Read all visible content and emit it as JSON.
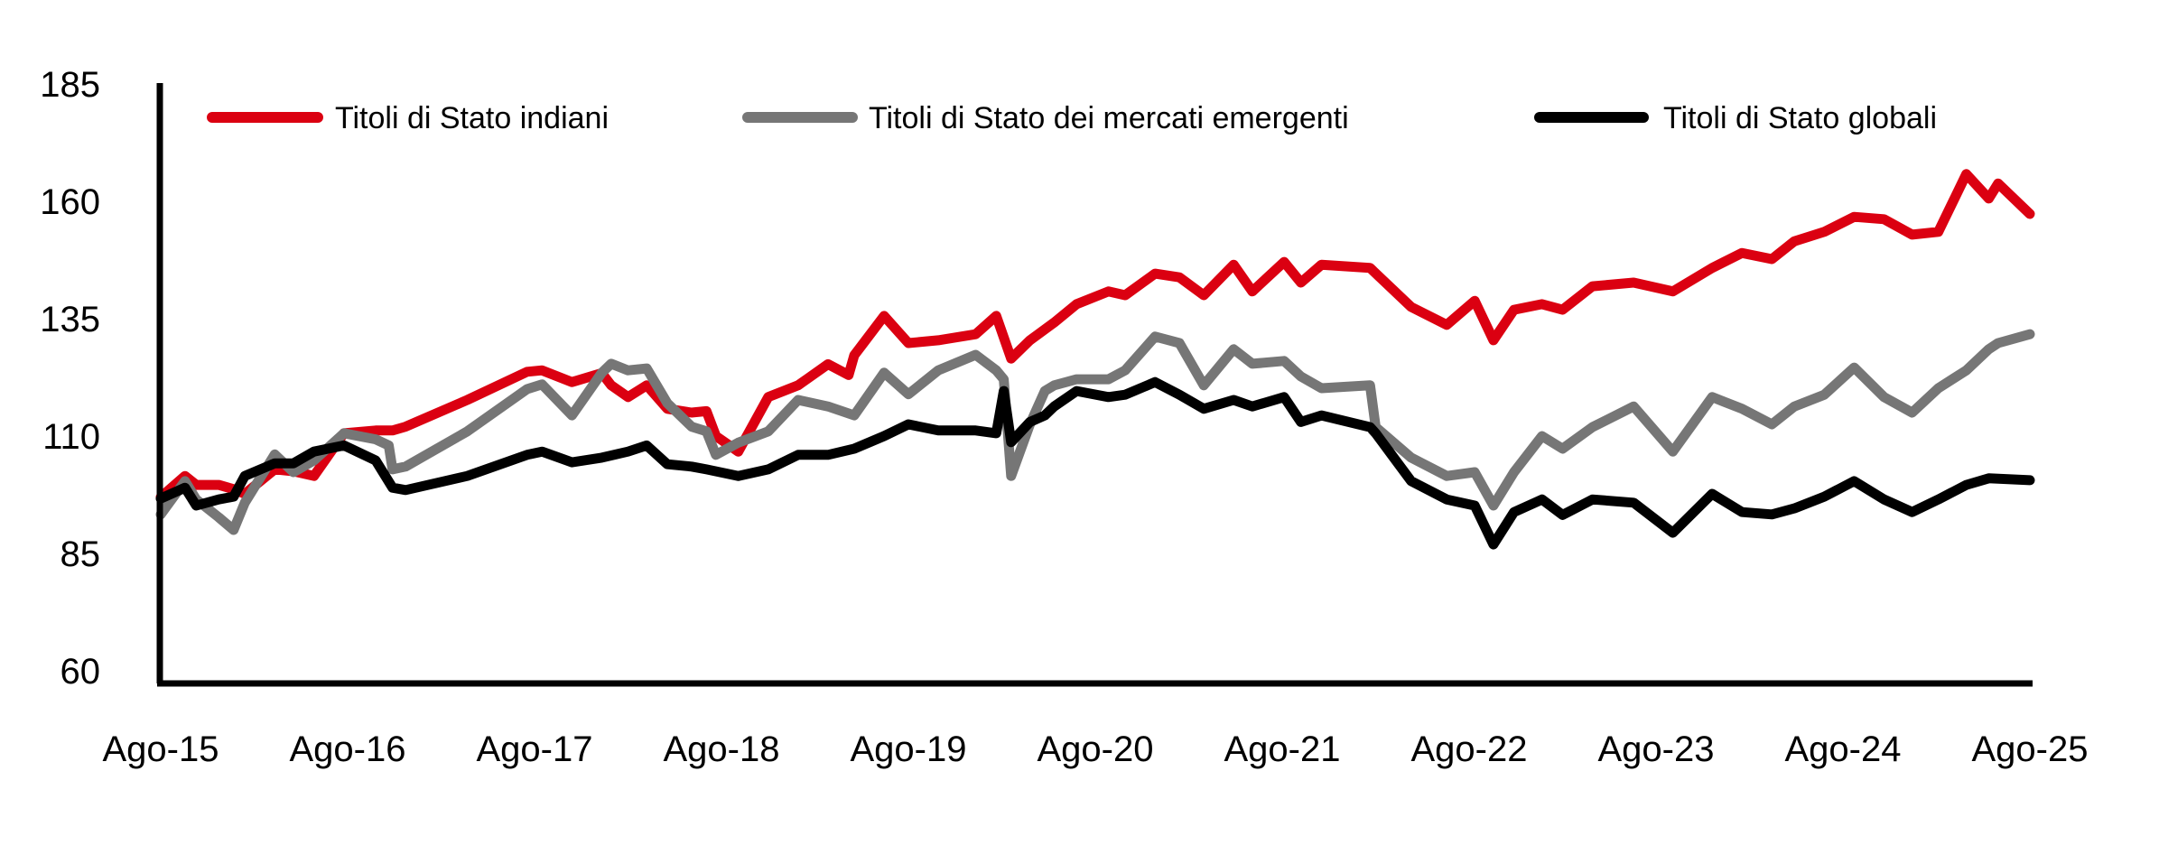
{
  "chart_data": {
    "type": "line",
    "title": "",
    "xlabel": "",
    "ylabel": "",
    "ylim": [
      60,
      185
    ],
    "yticks": [
      60,
      85,
      110,
      135,
      160,
      185
    ],
    "ytick_labels": [
      "60",
      "85",
      "110",
      "135",
      "160",
      "185"
    ],
    "xlim_years_from_start": [
      0,
      10
    ],
    "xtick_labels": [
      "Ago-15",
      "Ago-16",
      "Ago-17",
      "Ago-18",
      "Ago-19",
      "Ago-20",
      "Ago-21",
      "Ago-22",
      "Ago-23",
      "Ago-24",
      "Ago-25"
    ],
    "x_unit": "years since Aug-2015",
    "grid": false,
    "legend_position": "top",
    "series": [
      {
        "name": "Titoli di Stato indiani",
        "color": "#DB0011",
        "points": [
          [
            0,
            97
          ],
          [
            0.13,
            101.5
          ],
          [
            0.19,
            99.6
          ],
          [
            0.31,
            99.6
          ],
          [
            0.39,
            98.7
          ],
          [
            0.45,
            97.7
          ],
          [
            0.61,
            102.9
          ],
          [
            0.71,
            102.5
          ],
          [
            0.82,
            101.5
          ],
          [
            0.98,
            110.6
          ],
          [
            1.15,
            111.2
          ],
          [
            1.24,
            111.2
          ],
          [
            1.31,
            112
          ],
          [
            1.64,
            117.7
          ],
          [
            1.96,
            123.7
          ],
          [
            2.04,
            124
          ],
          [
            2.2,
            121.5
          ],
          [
            2.36,
            123.4
          ],
          [
            2.41,
            120.8
          ],
          [
            2.5,
            118.3
          ],
          [
            2.6,
            120.8
          ],
          [
            2.71,
            115.8
          ],
          [
            2.84,
            115
          ],
          [
            2.92,
            115.3
          ],
          [
            2.97,
            110
          ],
          [
            3.09,
            106.7
          ],
          [
            3.25,
            118.3
          ],
          [
            3.41,
            120.8
          ],
          [
            3.57,
            125.3
          ],
          [
            3.68,
            123
          ],
          [
            3.71,
            127.2
          ],
          [
            3.87,
            135.6
          ],
          [
            4.0,
            129.8
          ],
          [
            4.16,
            130.4
          ],
          [
            4.36,
            131.7
          ],
          [
            4.47,
            135.6
          ],
          [
            4.55,
            126.5
          ],
          [
            4.65,
            130.4
          ],
          [
            4.78,
            134.2
          ],
          [
            4.9,
            138.1
          ],
          [
            5.07,
            140.8
          ],
          [
            5.16,
            140
          ],
          [
            5.32,
            144.6
          ],
          [
            5.45,
            143.8
          ],
          [
            5.58,
            140
          ],
          [
            5.74,
            146.5
          ],
          [
            5.84,
            140.8
          ],
          [
            6.01,
            147.1
          ],
          [
            6.1,
            142.7
          ],
          [
            6.21,
            146.5
          ],
          [
            6.47,
            145.8
          ],
          [
            6.69,
            137.5
          ],
          [
            6.88,
            133.7
          ],
          [
            7.03,
            138.8
          ],
          [
            7.13,
            130.4
          ],
          [
            7.24,
            136.9
          ],
          [
            7.39,
            138.1
          ],
          [
            7.5,
            136.9
          ],
          [
            7.66,
            141.9
          ],
          [
            7.88,
            142.7
          ],
          [
            8.09,
            140.8
          ],
          [
            8.3,
            145.8
          ],
          [
            8.46,
            149
          ],
          [
            8.62,
            147.7
          ],
          [
            8.74,
            151.5
          ],
          [
            8.9,
            153.5
          ],
          [
            9.06,
            156.7
          ],
          [
            9.22,
            156.2
          ],
          [
            9.37,
            152.9
          ],
          [
            9.51,
            153.5
          ],
          [
            9.66,
            165.8
          ],
          [
            9.78,
            160.6
          ],
          [
            9.83,
            163.8
          ],
          [
            10.0,
            157.3
          ]
        ]
      },
      {
        "name": "Titoli di Stato dei mercati emergenti",
        "color": "#767676",
        "points": [
          [
            0,
            93.3
          ],
          [
            0.13,
            100.4
          ],
          [
            0.19,
            96.5
          ],
          [
            0.31,
            92.7
          ],
          [
            0.39,
            90
          ],
          [
            0.45,
            95.8
          ],
          [
            0.61,
            106.1
          ],
          [
            0.71,
            102.3
          ],
          [
            0.82,
            104.8
          ],
          [
            0.98,
            110.6
          ],
          [
            1.15,
            109.3
          ],
          [
            1.22,
            108
          ],
          [
            1.24,
            102.9
          ],
          [
            1.31,
            103.5
          ],
          [
            1.64,
            111
          ],
          [
            1.96,
            120
          ],
          [
            2.04,
            121
          ],
          [
            2.2,
            114.4
          ],
          [
            2.36,
            123.5
          ],
          [
            2.41,
            125.4
          ],
          [
            2.5,
            124
          ],
          [
            2.6,
            124.4
          ],
          [
            2.71,
            117
          ],
          [
            2.84,
            112
          ],
          [
            2.92,
            111
          ],
          [
            2.97,
            106
          ],
          [
            3.09,
            108.6
          ],
          [
            3.25,
            111
          ],
          [
            3.41,
            117.7
          ],
          [
            3.57,
            116.3
          ],
          [
            3.71,
            114.4
          ],
          [
            3.87,
            123.5
          ],
          [
            4.0,
            118.9
          ],
          [
            4.16,
            124
          ],
          [
            4.36,
            127.3
          ],
          [
            4.47,
            124
          ],
          [
            4.51,
            122.1
          ],
          [
            4.55,
            101.5
          ],
          [
            4.65,
            112.5
          ],
          [
            4.73,
            119.6
          ],
          [
            4.78,
            120.8
          ],
          [
            4.9,
            122.1
          ],
          [
            5.07,
            122.1
          ],
          [
            5.16,
            124
          ],
          [
            5.32,
            131.2
          ],
          [
            5.45,
            129.8
          ],
          [
            5.58,
            120.8
          ],
          [
            5.74,
            128.5
          ],
          [
            5.84,
            125.4
          ],
          [
            6.01,
            126
          ],
          [
            6.1,
            122.7
          ],
          [
            6.21,
            120.2
          ],
          [
            6.47,
            120.8
          ],
          [
            6.5,
            111.9
          ],
          [
            6.69,
            105.4
          ],
          [
            6.88,
            101.5
          ],
          [
            7.03,
            102.3
          ],
          [
            7.13,
            95.2
          ],
          [
            7.24,
            102.3
          ],
          [
            7.39,
            110
          ],
          [
            7.5,
            107.3
          ],
          [
            7.66,
            111.9
          ],
          [
            7.88,
            116.3
          ],
          [
            8.09,
            106.7
          ],
          [
            8.3,
            118.3
          ],
          [
            8.46,
            115.8
          ],
          [
            8.62,
            112.5
          ],
          [
            8.74,
            116.3
          ],
          [
            8.9,
            118.8
          ],
          [
            9.06,
            124.6
          ],
          [
            9.22,
            118.3
          ],
          [
            9.37,
            115
          ],
          [
            9.51,
            120.2
          ],
          [
            9.66,
            124
          ],
          [
            9.78,
            128.5
          ],
          [
            9.83,
            129.8
          ],
          [
            10.0,
            131.7
          ]
        ]
      },
      {
        "name": "Titoli di Stato globali",
        "color": "#000000",
        "points": [
          [
            0,
            96.7
          ],
          [
            0.13,
            99
          ],
          [
            0.19,
            95.2
          ],
          [
            0.31,
            96.5
          ],
          [
            0.39,
            97.1
          ],
          [
            0.45,
            101.5
          ],
          [
            0.61,
            104.2
          ],
          [
            0.71,
            104.2
          ],
          [
            0.82,
            106.7
          ],
          [
            0.98,
            108
          ],
          [
            1.15,
            104.8
          ],
          [
            1.24,
            99
          ],
          [
            1.31,
            98.5
          ],
          [
            1.64,
            101.5
          ],
          [
            1.96,
            106
          ],
          [
            2.04,
            106.7
          ],
          [
            2.2,
            104.4
          ],
          [
            2.36,
            105.4
          ],
          [
            2.5,
            106.7
          ],
          [
            2.6,
            108
          ],
          [
            2.71,
            104
          ],
          [
            2.84,
            103.5
          ],
          [
            2.92,
            102.9
          ],
          [
            3.09,
            101.5
          ],
          [
            3.25,
            102.9
          ],
          [
            3.41,
            106
          ],
          [
            3.57,
            106
          ],
          [
            3.71,
            107.3
          ],
          [
            3.87,
            110
          ],
          [
            4.0,
            112.5
          ],
          [
            4.16,
            111.2
          ],
          [
            4.36,
            111.2
          ],
          [
            4.47,
            110.6
          ],
          [
            4.51,
            119.6
          ],
          [
            4.55,
            108.7
          ],
          [
            4.65,
            113
          ],
          [
            4.73,
            114.4
          ],
          [
            4.78,
            116.3
          ],
          [
            4.9,
            119.6
          ],
          [
            5.07,
            118.3
          ],
          [
            5.16,
            118.8
          ],
          [
            5.32,
            121.5
          ],
          [
            5.45,
            118.8
          ],
          [
            5.58,
            115.8
          ],
          [
            5.74,
            117.7
          ],
          [
            5.84,
            116.3
          ],
          [
            6.01,
            118.3
          ],
          [
            6.1,
            113
          ],
          [
            6.21,
            114.4
          ],
          [
            6.47,
            111.9
          ],
          [
            6.5,
            110.6
          ],
          [
            6.69,
            100.4
          ],
          [
            6.88,
            96.5
          ],
          [
            7.03,
            95.2
          ],
          [
            7.13,
            86.9
          ],
          [
            7.24,
            93.8
          ],
          [
            7.39,
            96.5
          ],
          [
            7.5,
            93.2
          ],
          [
            7.66,
            96.5
          ],
          [
            7.88,
            95.8
          ],
          [
            8.09,
            89.4
          ],
          [
            8.3,
            97.7
          ],
          [
            8.46,
            93.8
          ],
          [
            8.62,
            93.3
          ],
          [
            8.74,
            94.6
          ],
          [
            8.9,
            97.1
          ],
          [
            9.06,
            100.4
          ],
          [
            9.22,
            96.5
          ],
          [
            9.37,
            93.8
          ],
          [
            9.51,
            96.5
          ],
          [
            9.66,
            99.6
          ],
          [
            9.78,
            101
          ],
          [
            10.0,
            100.6
          ]
        ]
      }
    ]
  }
}
